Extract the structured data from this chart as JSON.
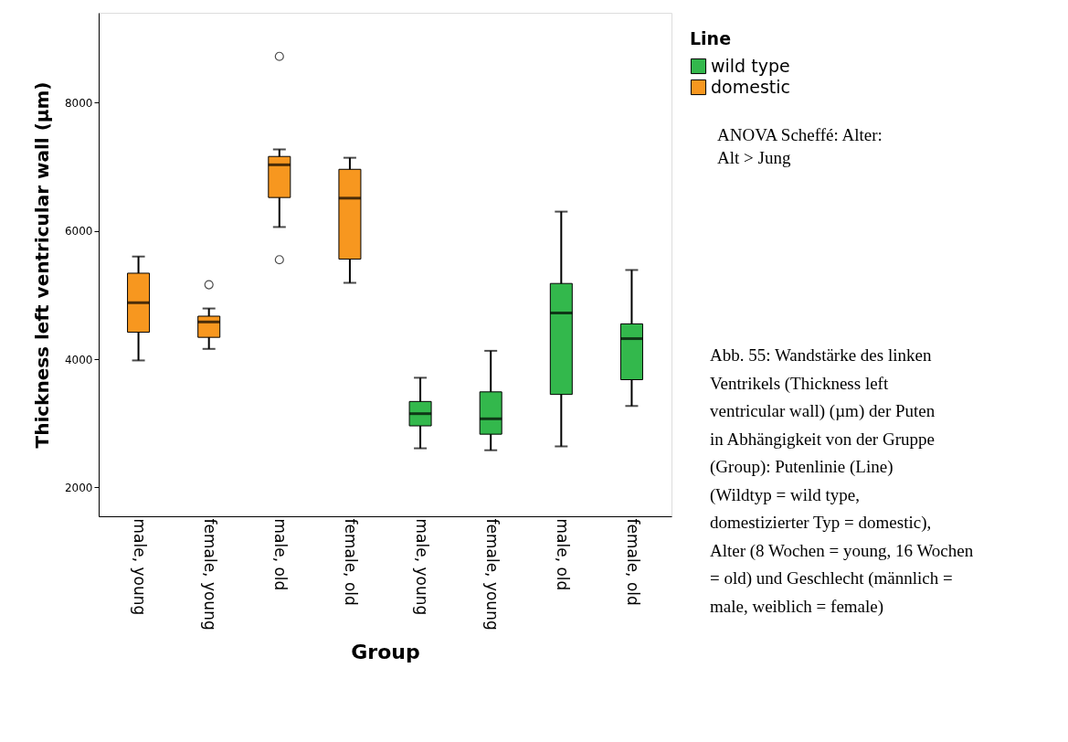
{
  "chart_data": {
    "type": "box",
    "categories": [
      "male, young",
      "female, young",
      "male, old",
      "female, old",
      "male, young",
      "female, young",
      "male, old",
      "female, old"
    ],
    "series": [
      {
        "name": "wild type",
        "color": "#33b84c",
        "boxes": [
          null,
          null,
          null,
          null,
          {
            "low": 2610,
            "q1": 2960,
            "median": 3150,
            "q3": 3340,
            "high": 3710
          },
          {
            "low": 2580,
            "q1": 2830,
            "median": 3070,
            "q3": 3490,
            "high": 4130
          },
          {
            "low": 2640,
            "q1": 3450,
            "median": 4720,
            "q3": 5180,
            "high": 6300
          },
          {
            "low": 3270,
            "q1": 3680,
            "median": 4320,
            "q3": 4550,
            "high": 5390
          }
        ]
      },
      {
        "name": "domestic",
        "color": "#f7971f",
        "boxes": [
          {
            "low": 3980,
            "q1": 4420,
            "median": 4880,
            "q3": 5340,
            "high": 5600
          },
          {
            "low": 4160,
            "q1": 4340,
            "median": 4580,
            "q3": 4670,
            "high": 4790,
            "outliers": [
              5160
            ]
          },
          {
            "low": 6060,
            "q1": 6520,
            "median": 7030,
            "q3": 7160,
            "high": 7270,
            "outliers": [
              8720,
              5550
            ]
          },
          {
            "low": 5190,
            "q1": 5560,
            "median": 6510,
            "q3": 6960,
            "high": 7140
          },
          null,
          null,
          null,
          null
        ]
      }
    ],
    "ylim": [
      1550,
      9400
    ],
    "yticks": [
      2000,
      4000,
      6000,
      8000
    ],
    "xlabel": "Group",
    "ylabel": "Thickness left ventricular wall (µm)",
    "legend_title": "Line",
    "legend": "right",
    "grid": false,
    "annotations": [
      "ANOVA Scheffé: Alter: Alt > Jung",
      "Abb. 55: Wandstärke des linken Ventrikels (Thickness left ventricular wall) (µm) der Puten in Abhängigkeit von der Gruppe (Group): Putenlinie (Line) (Wildtyp = wild type, domestizierter Typ = domestic), Alter (8 Wochen = young, 16 Wochen = old) und Geschlecht (männlich = male, weiblich = female)"
    ]
  }
}
